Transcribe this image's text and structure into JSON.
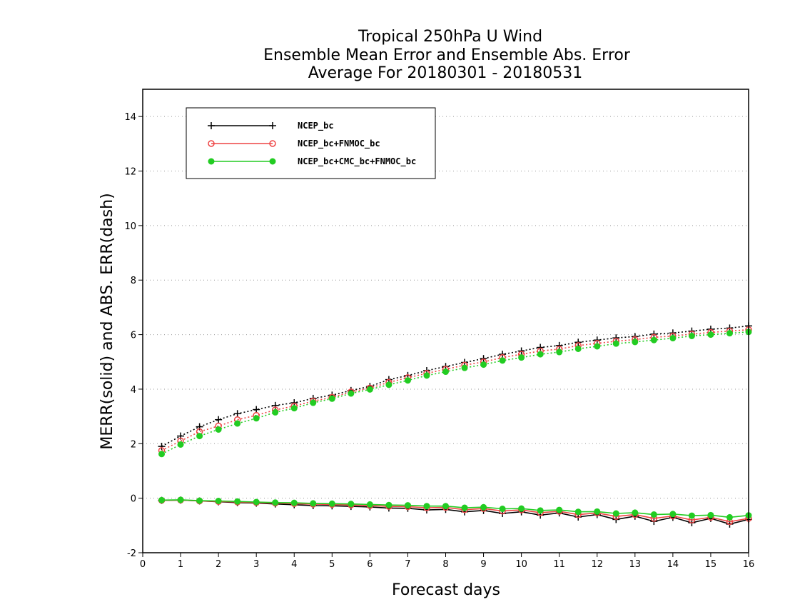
{
  "chart_data": {
    "type": "line",
    "title": [
      "Tropical 250hPa U Wind",
      "Ensemble Mean Error and Ensemble Abs. Error",
      "Average For 20180301 - 20180531"
    ],
    "xlabel": "Forecast days",
    "ylabel": "MERR(solid) and ABS. ERR(dash)",
    "xlim": [
      0,
      16
    ],
    "ylim": [
      -2,
      15
    ],
    "xticks": [
      0,
      1,
      2,
      3,
      4,
      5,
      6,
      7,
      8,
      9,
      10,
      11,
      12,
      13,
      14,
      15,
      16
    ],
    "yticks": [
      -2,
      0,
      2,
      4,
      6,
      8,
      10,
      12,
      14
    ],
    "grid": "horizontal dotted",
    "legend_position": "top-left",
    "x": [
      0.5,
      1,
      1.5,
      2,
      2.5,
      3,
      3.5,
      4,
      4.5,
      5,
      5.5,
      6,
      6.5,
      7,
      7.5,
      8,
      8.5,
      9,
      9.5,
      10,
      10.5,
      11,
      11.5,
      12,
      12.5,
      13,
      13.5,
      14,
      14.5,
      15,
      15.5,
      16
    ],
    "series": [
      {
        "name": "NCEP_bc",
        "color": "#000000",
        "marker": "plus",
        "merr": [
          -0.08,
          -0.07,
          -0.1,
          -0.13,
          -0.16,
          -0.18,
          -0.21,
          -0.24,
          -0.27,
          -0.28,
          -0.3,
          -0.32,
          -0.36,
          -0.37,
          -0.43,
          -0.41,
          -0.5,
          -0.45,
          -0.56,
          -0.5,
          -0.62,
          -0.54,
          -0.69,
          -0.6,
          -0.78,
          -0.66,
          -0.85,
          -0.7,
          -0.9,
          -0.74,
          -0.95,
          -0.78
        ],
        "abs_err": [
          1.9,
          2.28,
          2.62,
          2.88,
          3.1,
          3.25,
          3.4,
          3.5,
          3.66,
          3.78,
          3.95,
          4.1,
          4.35,
          4.5,
          4.68,
          4.83,
          4.98,
          5.12,
          5.28,
          5.4,
          5.53,
          5.6,
          5.72,
          5.8,
          5.88,
          5.93,
          6.02,
          6.06,
          6.13,
          6.2,
          6.24,
          6.32
        ]
      },
      {
        "name": "NCEP_bc+FNMOC_bc",
        "color": "#ee4444",
        "marker": "open-circle",
        "merr": [
          -0.08,
          -0.07,
          -0.1,
          -0.12,
          -0.14,
          -0.16,
          -0.18,
          -0.2,
          -0.22,
          -0.23,
          -0.25,
          -0.27,
          -0.3,
          -0.31,
          -0.35,
          -0.34,
          -0.42,
          -0.38,
          -0.47,
          -0.43,
          -0.53,
          -0.48,
          -0.6,
          -0.54,
          -0.67,
          -0.6,
          -0.74,
          -0.65,
          -0.8,
          -0.7,
          -0.86,
          -0.74
        ],
        "abs_err": [
          1.75,
          2.1,
          2.44,
          2.65,
          2.88,
          3.04,
          3.24,
          3.38,
          3.56,
          3.7,
          3.9,
          4.04,
          4.25,
          4.42,
          4.58,
          4.73,
          4.88,
          5.0,
          5.16,
          5.28,
          5.4,
          5.47,
          5.6,
          5.68,
          5.76,
          5.82,
          5.9,
          5.95,
          6.02,
          6.08,
          6.13,
          6.18
        ]
      },
      {
        "name": "NCEP_bc+CMC_bc+FNMOC_bc",
        "color": "#22cc22",
        "marker": "filled-circle",
        "merr": [
          -0.07,
          -0.06,
          -0.09,
          -0.1,
          -0.12,
          -0.14,
          -0.16,
          -0.17,
          -0.19,
          -0.2,
          -0.21,
          -0.23,
          -0.25,
          -0.26,
          -0.29,
          -0.29,
          -0.35,
          -0.33,
          -0.39,
          -0.38,
          -0.45,
          -0.43,
          -0.5,
          -0.49,
          -0.56,
          -0.53,
          -0.6,
          -0.58,
          -0.64,
          -0.62,
          -0.7,
          -0.63
        ],
        "abs_err": [
          1.62,
          1.97,
          2.28,
          2.52,
          2.74,
          2.93,
          3.15,
          3.3,
          3.5,
          3.65,
          3.84,
          3.99,
          4.16,
          4.32,
          4.5,
          4.64,
          4.78,
          4.9,
          5.05,
          5.16,
          5.28,
          5.36,
          5.48,
          5.57,
          5.67,
          5.73,
          5.8,
          5.87,
          5.95,
          6.0,
          6.05,
          6.1
        ]
      }
    ]
  }
}
